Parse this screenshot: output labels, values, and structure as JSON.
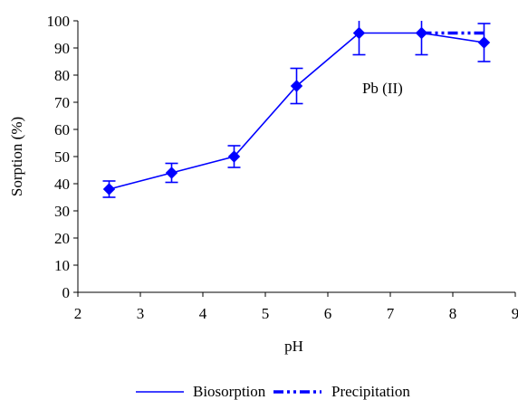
{
  "chart_data": {
    "type": "line",
    "title": "",
    "xlabel": "pH",
    "ylabel": "Sorption  (%)",
    "xlim": [
      2,
      9
    ],
    "ylim": [
      0,
      100
    ],
    "x_ticks": [
      2,
      3,
      4,
      5,
      6,
      7,
      8,
      9
    ],
    "y_ticks": [
      0,
      10,
      20,
      30,
      40,
      50,
      60,
      70,
      80,
      90,
      100
    ],
    "grid": false,
    "legend_position": "bottom",
    "annotation": "Pb (II)",
    "colors": {
      "series": "#0000ff",
      "axis": "#000000"
    },
    "series": [
      {
        "name": "Biosorption",
        "style": "solid",
        "marker": "diamond",
        "x": [
          2.5,
          3.5,
          4.5,
          5.5,
          6.5,
          7.5,
          8.5
        ],
        "y": [
          38,
          44,
          50,
          76,
          95.5,
          95.5,
          92
        ],
        "error": [
          3,
          3.5,
          4,
          6.5,
          8,
          8,
          7
        ]
      },
      {
        "name": "Precipitation",
        "style": "dash-dot-dot",
        "marker": "none",
        "x": [
          7.5,
          8.5
        ],
        "y": [
          95.5,
          95.5
        ]
      }
    ]
  }
}
